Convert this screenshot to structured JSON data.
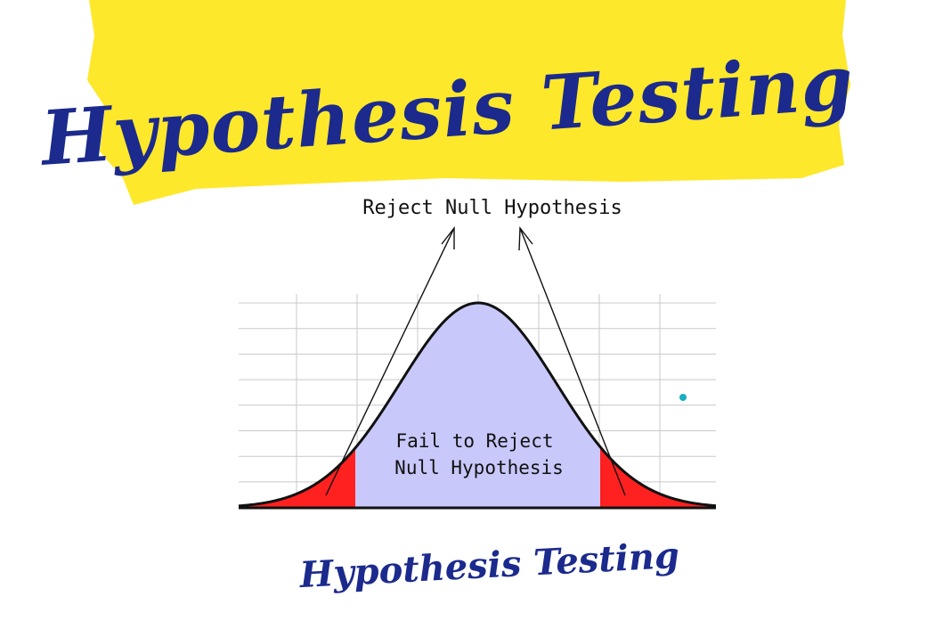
{
  "banner": {
    "title": "Hypothesis Testing",
    "background_color": "#fde82b",
    "text_color": "#1b2a8c"
  },
  "diagram": {
    "reject_label": "Reject Null Hypothesis",
    "accept_label_line1": "Fail to Reject",
    "accept_label_line2": "Null Hypothesis",
    "accept_region_color": "#c8c8fb",
    "reject_region_color": "#ff2020",
    "curve_color": "#111111",
    "grid_color": "#c9c9c9",
    "dot_color": "#1aaec2"
  },
  "footer": {
    "title": "Hypothesis Testing"
  }
}
